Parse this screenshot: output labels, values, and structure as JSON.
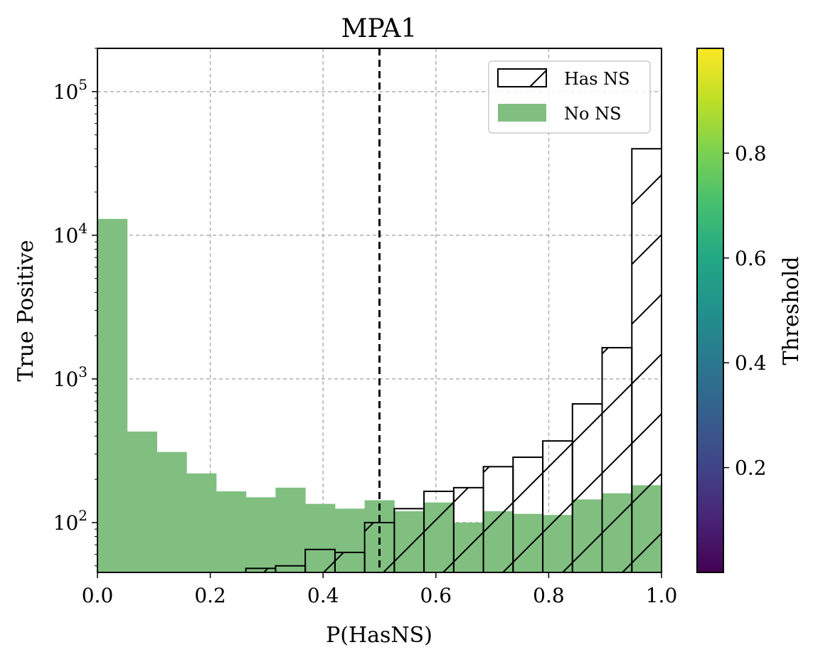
{
  "chart_data": {
    "type": "bar",
    "title": "MPA1",
    "xlabel": "P(HasNS)",
    "ylabel": "True Positive",
    "xlim": [
      0,
      1
    ],
    "ylim": [
      45,
      200000
    ],
    "yscale": "log",
    "grid": true,
    "legend_position": "top-right",
    "threshold_line": {
      "x": 0.5,
      "style": "dashed",
      "color": "#000000"
    },
    "x_ticks": [
      "0.0",
      "0.2",
      "0.4",
      "0.6",
      "0.8",
      "1.0"
    ],
    "y_ticks": [
      {
        "value": 100,
        "base": "10",
        "exp": "2"
      },
      {
        "value": 1000,
        "base": "10",
        "exp": "3"
      },
      {
        "value": 10000,
        "base": "10",
        "exp": "4"
      },
      {
        "value": 100000,
        "base": "10",
        "exp": "5"
      }
    ],
    "bin_edges": [
      0,
      0.0526,
      0.1053,
      0.1579,
      0.2105,
      0.2632,
      0.3158,
      0.3684,
      0.4211,
      0.4737,
      0.5263,
      0.5789,
      0.6316,
      0.6842,
      0.7368,
      0.7895,
      0.8421,
      0.8947,
      0.9474,
      1.0
    ],
    "series": [
      {
        "name": "Has NS",
        "style": "hatched-outline",
        "color": "#000000",
        "values": [
          0,
          0,
          0,
          0,
          0,
          48,
          50,
          65,
          62,
          100,
          125,
          165,
          175,
          245,
          285,
          370,
          670,
          1650,
          40000
        ]
      },
      {
        "name": "No NS",
        "style": "filled",
        "color": "#80bf80",
        "values": [
          13000,
          430,
          310,
          220,
          165,
          150,
          175,
          135,
          125,
          143,
          120,
          138,
          100,
          120,
          115,
          113,
          145,
          160,
          182
        ]
      }
    ],
    "colorbar": {
      "label": "Threshold",
      "colormap": "viridis",
      "range": [
        0,
        1
      ],
      "ticks": [
        "0.2",
        "0.4",
        "0.6",
        "0.8"
      ]
    }
  }
}
